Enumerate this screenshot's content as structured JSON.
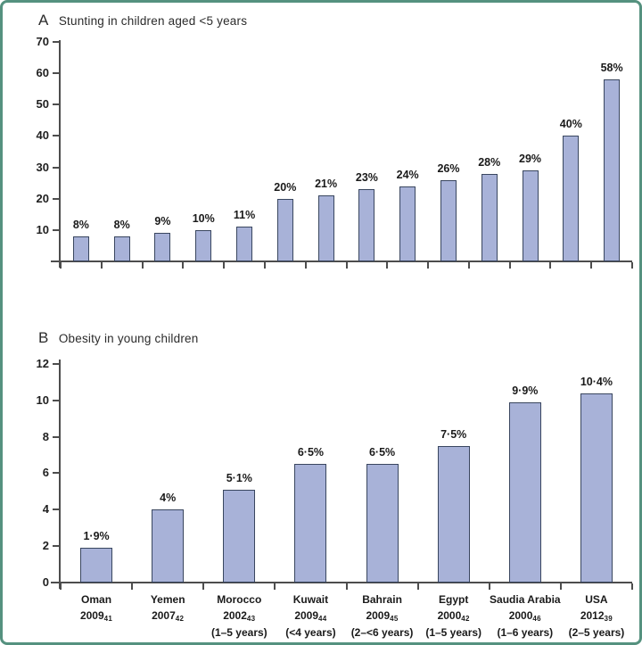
{
  "figure": {
    "border_color": "#55917f",
    "bar_fill": "#a8b2d8",
    "bar_stroke": "#39465f",
    "axis_color": "#4d4d4d"
  },
  "chart_data": [
    {
      "type": "bar",
      "panel_letter": "A",
      "title": "Stunting in children aged <5 years",
      "values": [
        8,
        8,
        9,
        10,
        11,
        20,
        21,
        23,
        24,
        26,
        28,
        29,
        40,
        58
      ],
      "bar_labels": [
        "8%",
        "8%",
        "9%",
        "10%",
        "11%",
        "20%",
        "21%",
        "23%",
        "24%",
        "26%",
        "28%",
        "29%",
        "40%",
        "58%"
      ],
      "categories": [],
      "xlabel": "",
      "ylabel": "",
      "ylim": [
        0,
        70
      ],
      "yticks": [
        70,
        60,
        50,
        40,
        30,
        20,
        10
      ],
      "grid": false,
      "legend": false
    },
    {
      "type": "bar",
      "panel_letter": "B",
      "title": "Obesity in young children",
      "values": [
        1.9,
        4,
        5.1,
        6.5,
        6.5,
        7.5,
        9.9,
        10.4
      ],
      "bar_labels": [
        "1·9%",
        "4%",
        "5·1%",
        "6·5%",
        "6·5%",
        "7·5%",
        "9·9%",
        "10·4%"
      ],
      "categories": [
        {
          "country": "Oman",
          "year": "2009",
          "ref": "41",
          "age": ""
        },
        {
          "country": "Yemen",
          "year": "2007",
          "ref": "42",
          "age": ""
        },
        {
          "country": "Morocco",
          "year": "2002",
          "ref": "43",
          "age": "(1–5 years)"
        },
        {
          "country": "Kuwait",
          "year": "2009",
          "ref": "44",
          "age": "(<4 years)"
        },
        {
          "country": "Bahrain",
          "year": "2009",
          "ref": "45",
          "age": "(2–<6 years)"
        },
        {
          "country": "Egypt",
          "year": "2000",
          "ref": "42",
          "age": "(1–5 years)"
        },
        {
          "country": "Saudia Arabia",
          "year": "2000",
          "ref": "46",
          "age": "(1–6 years)"
        },
        {
          "country": "USA",
          "year": "2012",
          "ref": "39",
          "age": "(2–5 years)"
        }
      ],
      "xlabel": "",
      "ylabel": "",
      "ylim": [
        0,
        12
      ],
      "yticks": [
        12,
        10,
        8,
        6,
        4,
        2,
        0
      ],
      "grid": false,
      "legend": false
    }
  ]
}
